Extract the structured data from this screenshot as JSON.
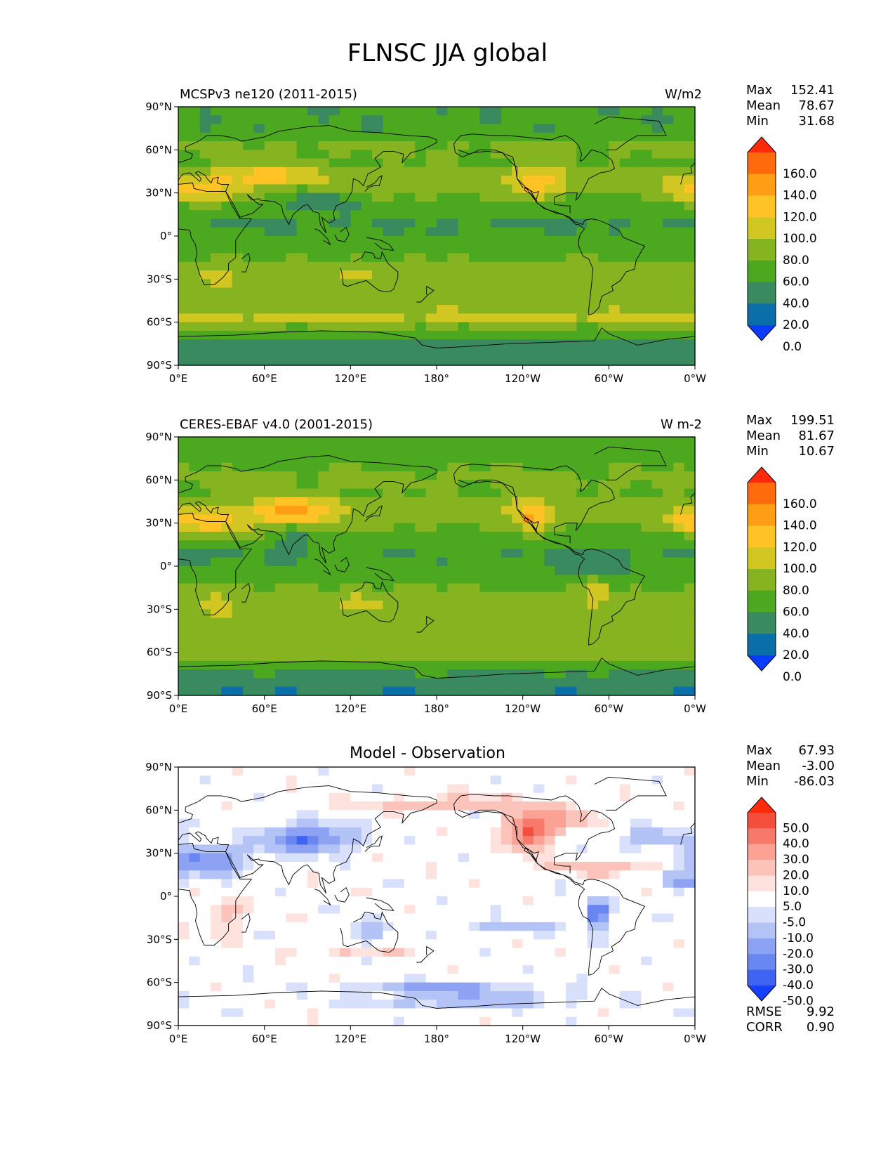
{
  "figure_title": "FLNSC JJA global",
  "x_ticks": [
    "0°E",
    "60°E",
    "120°E",
    "180°",
    "120°W",
    "60°W",
    "0°W"
  ],
  "y_ticks": [
    "90°N",
    "60°N",
    "30°N",
    "0°",
    "30°S",
    "60°S",
    "90°S"
  ],
  "colors": {
    "abs_levels": [
      "#0a3cff",
      "#0a6ea8",
      "#3a8a5f",
      "#4ca81e",
      "#86b420",
      "#d2c622",
      "#ffc325",
      "#ff9d15",
      "#ff6a0d",
      "#ff2a0a"
    ],
    "diff_levels": [
      "#1640ff",
      "#3f63f2",
      "#6a86f0",
      "#8da2f2",
      "#b3c3f6",
      "#d8e0fb",
      "#ffffff",
      "#fde2de",
      "#fcc3bb",
      "#fba294",
      "#f7796b",
      "#f44f3c",
      "#ff2a0a"
    ]
  },
  "chart_data": [
    {
      "type": "heatmap",
      "title": "MCSPv3 ne120 (2011-2015)",
      "units": "W/m2",
      "xlim": [
        0,
        360
      ],
      "ylim": [
        -90,
        90
      ],
      "stats": [
        {
          "label": "Max",
          "value": "152.41"
        },
        {
          "label": "Mean",
          "value": "78.67"
        },
        {
          "label": "Min",
          "value": "31.68"
        }
      ],
      "colorbar_labels": [
        "160.0",
        "140.0",
        "120.0",
        "100.0",
        "80.0",
        "60.0",
        "40.0",
        "20.0",
        "0.0"
      ]
    },
    {
      "type": "heatmap",
      "title": "CERES-EBAF v4.0 (2001-2015)",
      "units": "W m-2",
      "xlim": [
        0,
        360
      ],
      "ylim": [
        -90,
        90
      ],
      "stats": [
        {
          "label": "Max",
          "value": "199.51"
        },
        {
          "label": "Mean",
          "value": "81.67"
        },
        {
          "label": "Min",
          "value": "10.67"
        }
      ],
      "colorbar_labels": [
        "160.0",
        "140.0",
        "120.0",
        "100.0",
        "80.0",
        "60.0",
        "40.0",
        "20.0",
        "0.0"
      ]
    },
    {
      "type": "heatmap",
      "title": "Model - Observation",
      "units": "",
      "xlim": [
        0,
        360
      ],
      "ylim": [
        -90,
        90
      ],
      "stats": [
        {
          "label": "Max",
          "value": "67.93"
        },
        {
          "label": "Mean",
          "value": "-3.00"
        },
        {
          "label": "Min",
          "value": "-86.03"
        }
      ],
      "colorbar_labels": [
        "50.0",
        "40.0",
        "30.0",
        "20.0",
        "10.0",
        "5.0",
        "-5.0",
        "-10.0",
        "-20.0",
        "-30.0",
        "-40.0",
        "-50.0"
      ],
      "metrics": [
        {
          "label": "RMSE",
          "value": "9.92"
        },
        {
          "label": "CORR",
          "value": "0.90"
        }
      ]
    }
  ]
}
